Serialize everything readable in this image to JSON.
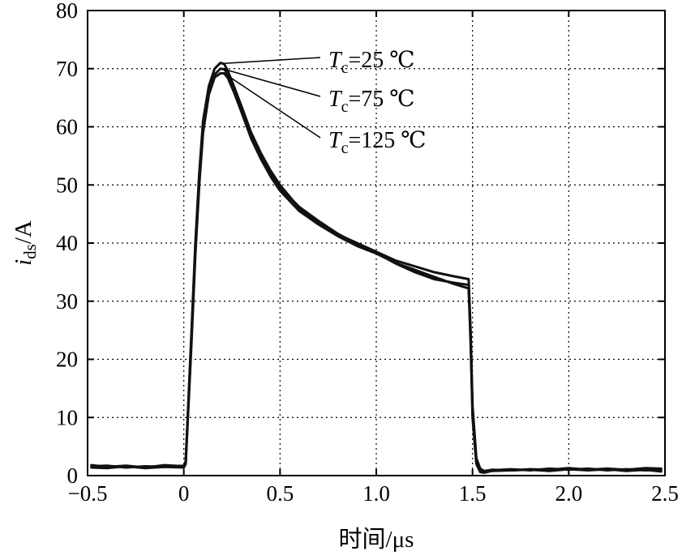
{
  "chart_data": {
    "type": "line",
    "title": "",
    "xlabel": "时间/μs",
    "ylabel_symbol": "i",
    "ylabel_subscript": "ds",
    "ylabel_unit": "/A",
    "xlim": [
      -0.5,
      2.5
    ],
    "ylim": [
      0,
      80
    ],
    "xticks": [
      "−0.5",
      "0",
      "0.5",
      "1.0",
      "1.5",
      "2.0",
      "2.5"
    ],
    "xtick_values": [
      -0.5,
      0,
      0.5,
      1.0,
      1.5,
      2.0,
      2.5
    ],
    "yticks": [
      "0",
      "10",
      "20",
      "30",
      "40",
      "50",
      "60",
      "70",
      "80"
    ],
    "ytick_values": [
      0,
      10,
      20,
      30,
      40,
      50,
      60,
      70,
      80
    ],
    "grid": true,
    "series": [
      {
        "name": "Tc=25 °C",
        "label_symbol": "T",
        "label_subscript": "c",
        "label_value": "=25 ℃",
        "x": [
          -0.48,
          -0.4,
          -0.3,
          -0.2,
          -0.1,
          0.0,
          0.01,
          0.02,
          0.04,
          0.06,
          0.08,
          0.1,
          0.13,
          0.16,
          0.19,
          0.21,
          0.23,
          0.26,
          0.3,
          0.35,
          0.4,
          0.45,
          0.5,
          0.6,
          0.7,
          0.8,
          0.9,
          1.0,
          1.1,
          1.2,
          1.3,
          1.4,
          1.48,
          1.49,
          1.5,
          1.52,
          1.54,
          1.56,
          1.6,
          1.7,
          1.8,
          1.9,
          2.0,
          2.1,
          2.2,
          2.3,
          2.4,
          2.48
        ],
        "y": [
          1.8,
          1.5,
          1.7,
          1.4,
          1.8,
          1.6,
          2.5,
          10,
          25,
          40,
          52,
          61,
          67,
          70,
          71,
          70.8,
          69.5,
          67,
          63.5,
          59,
          55.5,
          52.5,
          50,
          46,
          43.5,
          41.5,
          40,
          38.5,
          37,
          36,
          35,
          34.3,
          33.8,
          25,
          12,
          3,
          1.2,
          0.8,
          1.0,
          0.9,
          1.1,
          1.0,
          1.3,
          1.0,
          1.2,
          1.0,
          1.3,
          1.2
        ]
      },
      {
        "name": "Tc=75 °C",
        "label_symbol": "T",
        "label_subscript": "c",
        "label_value": "=75 ℃",
        "x": [
          -0.48,
          -0.4,
          -0.3,
          -0.2,
          -0.1,
          0.0,
          0.01,
          0.02,
          0.04,
          0.06,
          0.08,
          0.1,
          0.13,
          0.16,
          0.19,
          0.21,
          0.23,
          0.26,
          0.3,
          0.35,
          0.4,
          0.45,
          0.5,
          0.6,
          0.7,
          0.8,
          0.9,
          1.0,
          1.1,
          1.2,
          1.3,
          1.4,
          1.48,
          1.49,
          1.5,
          1.52,
          1.54,
          1.56,
          1.6,
          1.7,
          1.8,
          1.9,
          2.0,
          2.1,
          2.2,
          2.3,
          2.4,
          2.48
        ],
        "y": [
          1.6,
          1.7,
          1.4,
          1.6,
          1.5,
          1.7,
          2.3,
          9.5,
          24,
          39,
          51,
          60,
          66,
          69,
          70,
          69.9,
          69,
          66.5,
          63,
          58.5,
          55,
          52,
          49.5,
          46.2,
          43.8,
          41.6,
          39.8,
          38.3,
          36.5,
          35,
          33.8,
          33.2,
          32.8,
          24,
          11,
          2.5,
          1.0,
          0.7,
          0.9,
          1.1,
          0.9,
          1.2,
          1.0,
          1.2,
          0.9,
          1.1,
          0.9,
          1.0
        ]
      },
      {
        "name": "Tc=125 °C",
        "label_symbol": "T",
        "label_subscript": "c",
        "label_value": "=125 ℃",
        "x": [
          -0.48,
          -0.4,
          -0.3,
          -0.2,
          -0.1,
          0.0,
          0.01,
          0.02,
          0.04,
          0.06,
          0.08,
          0.1,
          0.13,
          0.16,
          0.19,
          0.21,
          0.23,
          0.26,
          0.3,
          0.35,
          0.4,
          0.45,
          0.5,
          0.6,
          0.7,
          0.8,
          0.9,
          1.0,
          1.1,
          1.2,
          1.3,
          1.4,
          1.48,
          1.49,
          1.5,
          1.52,
          1.54,
          1.56,
          1.6,
          1.7,
          1.8,
          1.9,
          2.0,
          2.1,
          2.2,
          2.3,
          2.4,
          2.48
        ],
        "y": [
          1.4,
          1.3,
          1.6,
          1.3,
          1.5,
          1.4,
          2.0,
          9,
          23,
          38,
          50,
          59,
          65.5,
          68.5,
          69.2,
          69.2,
          68.3,
          66,
          62.5,
          58,
          54.5,
          51.5,
          49,
          45.5,
          43.2,
          41.2,
          39.5,
          38.2,
          36.6,
          35.4,
          34.2,
          33,
          32.2,
          23,
          10,
          2,
          0.6,
          0.5,
          0.8,
          0.9,
          1.0,
          0.8,
          1.1,
          0.9,
          1.1,
          0.8,
          1.0,
          0.7
        ]
      }
    ],
    "annotations": [
      {
        "series": 0,
        "anchor_x": 0.21,
        "anchor_y": 70.9
      },
      {
        "series": 1,
        "anchor_x": 0.21,
        "anchor_y": 69.9
      },
      {
        "series": 2,
        "anchor_x": 0.21,
        "anchor_y": 69.2
      }
    ]
  }
}
